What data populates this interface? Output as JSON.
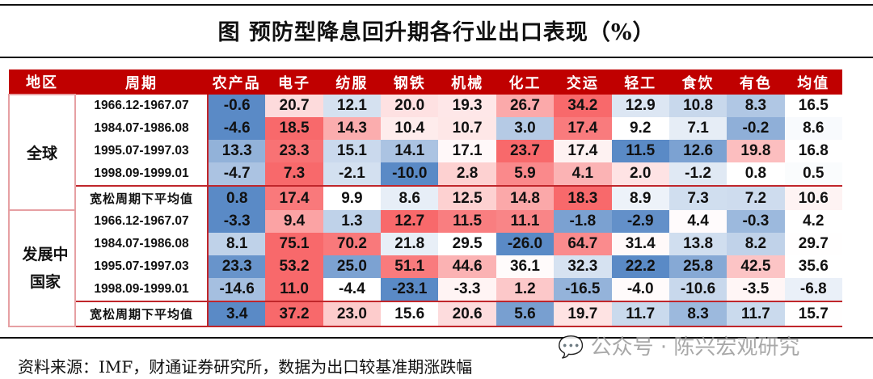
{
  "title": "图 预防型降息回升期各行业出口表现（%）",
  "headers": [
    "地区",
    "周期",
    "农产品",
    "电子",
    "纺服",
    "钢铁",
    "机械",
    "化工",
    "交运",
    "轻工",
    "食饮",
    "有色",
    "均值"
  ],
  "colors": {
    "header": "#c00000",
    "low": "#5a8ac6",
    "mid": "#ffffff",
    "high": "#f8696b"
  },
  "groups": [
    {
      "region": "全球",
      "rows": [
        {
          "period": "1966.12-1967.07",
          "values": [
            "-0.6",
            "20.7",
            "12.1",
            "20.0",
            "19.3",
            "26.7",
            "34.2",
            "12.9",
            "10.8",
            "8.3",
            "16.5"
          ]
        },
        {
          "period": "1984.07-1986.08",
          "values": [
            "-4.6",
            "18.5",
            "14.3",
            "10.4",
            "10.7",
            "3.0",
            "17.4",
            "9.2",
            "7.1",
            "-0.2",
            "8.6"
          ]
        },
        {
          "period": "1995.07-1997.03",
          "values": [
            "13.3",
            "23.3",
            "15.1",
            "14.1",
            "17.1",
            "23.7",
            "17.4",
            "11.5",
            "12.6",
            "19.8",
            "16.8"
          ]
        },
        {
          "period": "1998.09-1999.01",
          "values": [
            "-4.7",
            "7.3",
            "-2.1",
            "-10.0",
            "2.8",
            "5.9",
            "4.1",
            "2.0",
            "-1.2",
            "0.8",
            "0.5"
          ]
        },
        {
          "period": "宽松周期下平均值",
          "values": [
            "0.8",
            "17.4",
            "9.9",
            "8.6",
            "12.5",
            "14.8",
            "18.3",
            "8.9",
            "7.3",
            "7.2",
            "10.6"
          ]
        }
      ]
    },
    {
      "region": "发展中国家",
      "rows": [
        {
          "period": "1966.12-1967.07",
          "values": [
            "-3.3",
            "9.4",
            "1.3",
            "12.7",
            "11.5",
            "11.1",
            "-1.8",
            "-2.9",
            "4.4",
            "-0.3",
            "4.2"
          ]
        },
        {
          "period": "1984.07-1986.08",
          "values": [
            "8.1",
            "75.1",
            "70.2",
            "21.8",
            "29.5",
            "-26.0",
            "64.7",
            "31.4",
            "13.8",
            "8.2",
            "29.7"
          ]
        },
        {
          "period": "1995.07-1997.03",
          "values": [
            "23.3",
            "53.2",
            "25.0",
            "51.1",
            "44.6",
            "36.1",
            "32.3",
            "22.2",
            "25.8",
            "42.5",
            "35.6"
          ]
        },
        {
          "period": "1998.09-1999.01",
          "values": [
            "-14.6",
            "11.0",
            "-4.4",
            "-23.1",
            "-3.3",
            "1.2",
            "-16.5",
            "-4.0",
            "-10.6",
            "-3.5",
            "-6.8"
          ]
        },
        {
          "period": "宽松周期下平均值",
          "values": [
            "3.4",
            "37.2",
            "23.0",
            "15.6",
            "20.6",
            "5.6",
            "19.7",
            "11.7",
            "8.3",
            "11.7",
            "15.7"
          ]
        }
      ]
    }
  ],
  "source": "资料来源：IMF，财通证券研究所，数据为出口较基准期涨跌幅",
  "watermark": "公众号 · 陈兴宏观研究"
}
